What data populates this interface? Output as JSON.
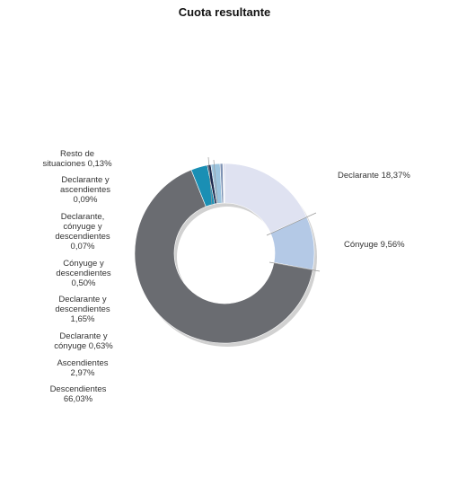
{
  "chart_data": {
    "type": "pie",
    "title": "Cuota resultante",
    "slices": [
      {
        "label": [
          "Declarante 18,37%"
        ],
        "value": 18.37,
        "color": "#dfe2f1",
        "side": "right"
      },
      {
        "label": [
          "Cónyuge 9,56%"
        ],
        "value": 9.56,
        "color": "#b4c9e6",
        "side": "right"
      },
      {
        "label": [
          "Descendientes",
          "66,03%"
        ],
        "value": 66.03,
        "color": "#6a6c71",
        "side": "left"
      },
      {
        "label": [
          "Ascendientes",
          "2,97%"
        ],
        "value": 2.97,
        "color": "#1a8fb4",
        "side": "left"
      },
      {
        "label": [
          "Declarante y",
          "cónyuge 0,63%"
        ],
        "value": 0.63,
        "color": "#1d2a4e",
        "side": "left"
      },
      {
        "label": [
          "Declarante y",
          "descendientes",
          "1,65%"
        ],
        "value": 1.65,
        "color": "#9cc4de",
        "side": "left"
      },
      {
        "label": [
          "Cónyuge y",
          "descendientes",
          "0,50%"
        ],
        "value": 0.5,
        "color": "#7f93b4",
        "side": "left"
      },
      {
        "label": [
          "Declarante,",
          "cónyuge y",
          "descendientes",
          "0,07%"
        ],
        "value": 0.07,
        "color": "#3d4f7e",
        "side": "left"
      },
      {
        "label": [
          "Declarante y",
          "ascendientes",
          "0,09%"
        ],
        "value": 0.09,
        "color": "#c6d6e6",
        "side": "left"
      },
      {
        "label": [
          "Resto de",
          "situaciones 0,13%"
        ],
        "value": 0.13,
        "color": "#1f2f8c",
        "side": "left"
      }
    ]
  }
}
